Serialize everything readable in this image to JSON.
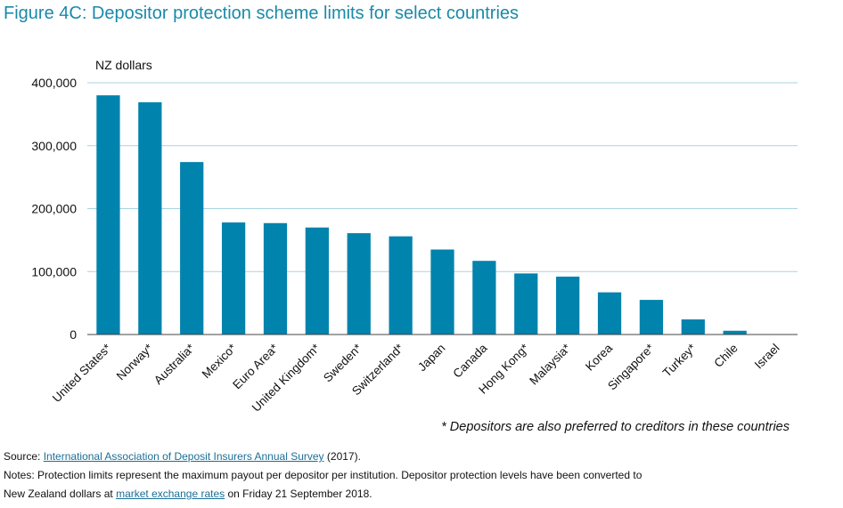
{
  "title": "Figure 4C: Depositor protection scheme limits for select countries",
  "colors": {
    "title": "#1a8aa8",
    "bar": "#0083ad",
    "grid": "#a8d4e2",
    "link": "#1b6f96"
  },
  "chart_data": {
    "type": "bar",
    "title": "",
    "ylabel": "NZ dollars",
    "xlabel": "",
    "ylim": [
      0,
      400000
    ],
    "yticks": [
      0,
      100000,
      200000,
      300000,
      400000
    ],
    "ytick_labels": [
      "0",
      "100,000",
      "200,000",
      "300,000",
      "400,000"
    ],
    "grid": true,
    "categories": [
      "United States*",
      "Norway*",
      "Australia*",
      "Mexico*",
      "Euro Area*",
      "United Kingdom*",
      "Sweden*",
      "Switzerland*",
      "Japan",
      "Canada",
      "Hong Kong*",
      "Malaysia*",
      "Korea",
      "Singapore*",
      "Turkey*",
      "Chile",
      "Israel"
    ],
    "values": [
      380000,
      369000,
      274000,
      178000,
      177000,
      170000,
      161000,
      156000,
      135000,
      117000,
      97000,
      92000,
      67000,
      55000,
      24000,
      6000,
      0
    ]
  },
  "footnote": "* Depositors are also preferred to creditors in these countries",
  "notes": {
    "source_prefix": "Source: ",
    "source_link": "International Association of Deposit Insurers Annual Survey",
    "source_suffix": " (2017).",
    "notes_line1": "Notes: Protection limits represent the maximum payout per depositor per institution.  Depositor protection levels have been converted to",
    "notes_line2_prefix": "New Zealand dollars at ",
    "notes_line2_link": "market exchange rates",
    "notes_line2_suffix": " on Friday 21 September 2018."
  }
}
